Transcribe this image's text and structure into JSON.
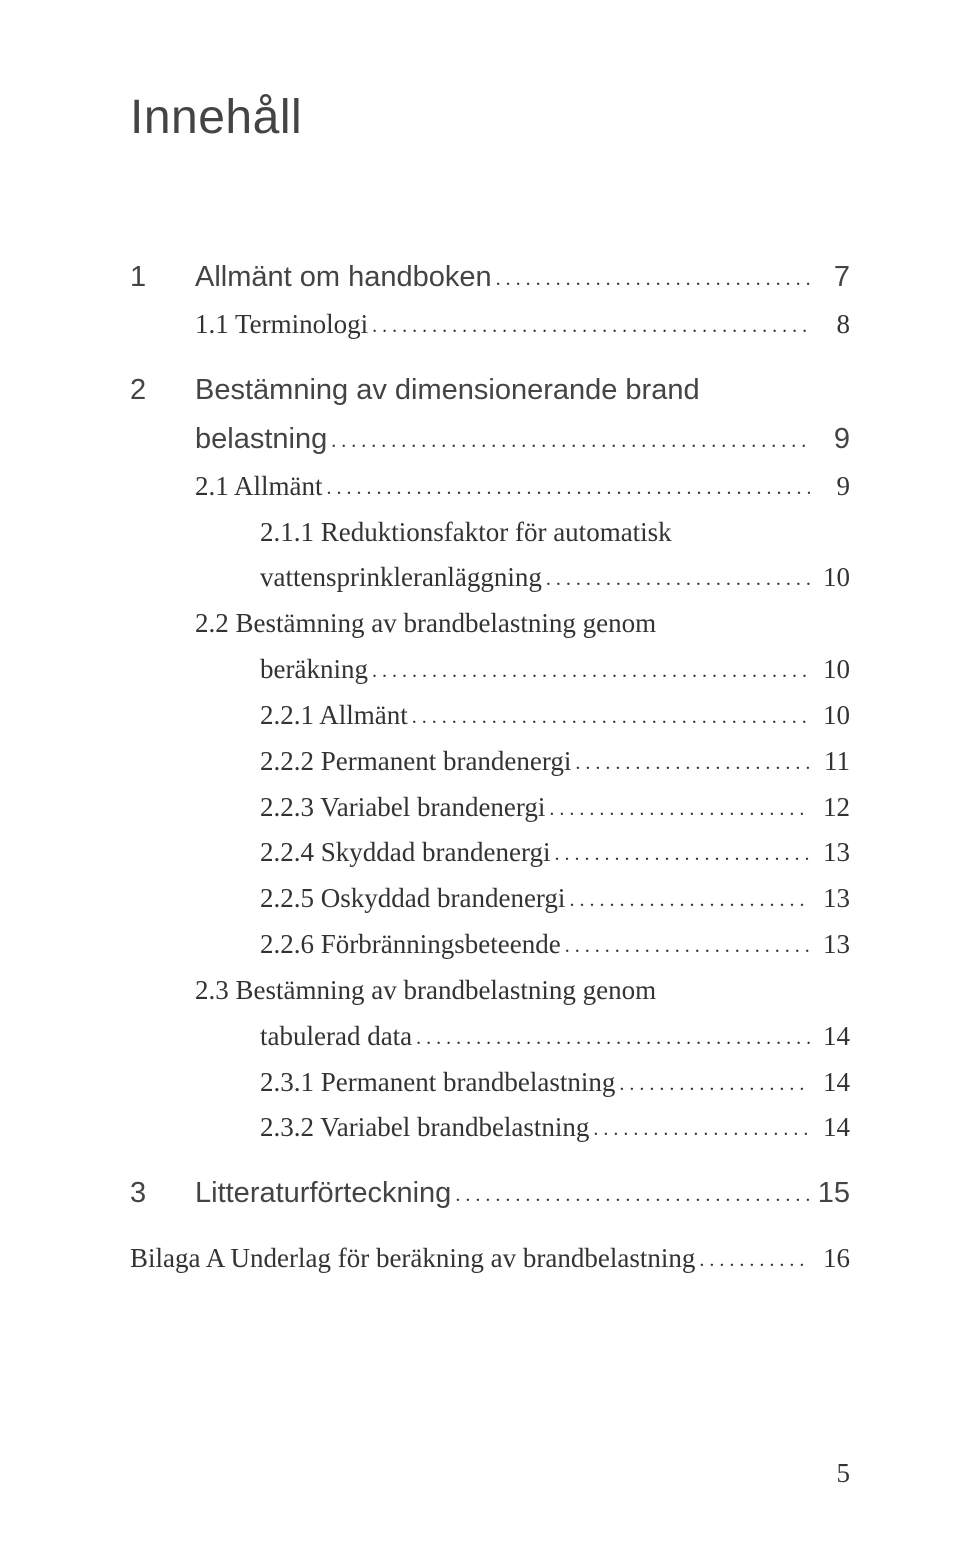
{
  "title": "Innehåll",
  "footer_page": "5",
  "toc": [
    {
      "type": "chapter",
      "num": "1",
      "label": "Allmänt om handboken",
      "page": "7",
      "first": true
    },
    {
      "type": "sub1",
      "label": "1.1 Terminologi",
      "page": "8"
    },
    {
      "type": "chapter-wrap",
      "num": "2",
      "label_line1": "Bestämning av dimensionerande brand",
      "label_line2": "belastning",
      "page": "9",
      "first": true
    },
    {
      "type": "sub1",
      "label": "2.1 Allmänt",
      "page": "9"
    },
    {
      "type": "sub2-wrap",
      "label_line1": "2.1.1 Reduktionsfaktor för automatisk",
      "label_line2": "vattensprinkleranläggning",
      "page": "10"
    },
    {
      "type": "sub1-wrap",
      "label_line1": "2.2 Bestämning av brandbelastning genom",
      "label_line2": "beräkning",
      "page": "10"
    },
    {
      "type": "sub2",
      "label": "2.2.1 Allmänt",
      "page": "10"
    },
    {
      "type": "sub2",
      "label": "2.2.2 Permanent brandenergi",
      "page": "11"
    },
    {
      "type": "sub2",
      "label": "2.2.3 Variabel brandenergi",
      "page": "12"
    },
    {
      "type": "sub2",
      "label": "2.2.4 Skyddad brandenergi",
      "page": "13"
    },
    {
      "type": "sub2",
      "label": "2.2.5 Oskyddad brandenergi",
      "page": "13"
    },
    {
      "type": "sub2",
      "label": "2.2.6 Förbränningsbeteende",
      "page": "13"
    },
    {
      "type": "sub1-wrap",
      "label_line1": "2.3 Bestämning av brandbelastning genom",
      "label_line2": "tabulerad data",
      "page": "14"
    },
    {
      "type": "sub2",
      "label": "2.3.1 Permanent brandbelastning",
      "page": "14"
    },
    {
      "type": "sub2",
      "label": "2.3.2 Variabel brandbelastning",
      "page": "14"
    },
    {
      "type": "chapter",
      "num": "3",
      "label": "Litteraturförteckning",
      "page": "15",
      "first": true
    },
    {
      "type": "appendix",
      "label": "Bilaga A Underlag för beräkning av brandbelastning",
      "page": "16",
      "first": true
    }
  ]
}
